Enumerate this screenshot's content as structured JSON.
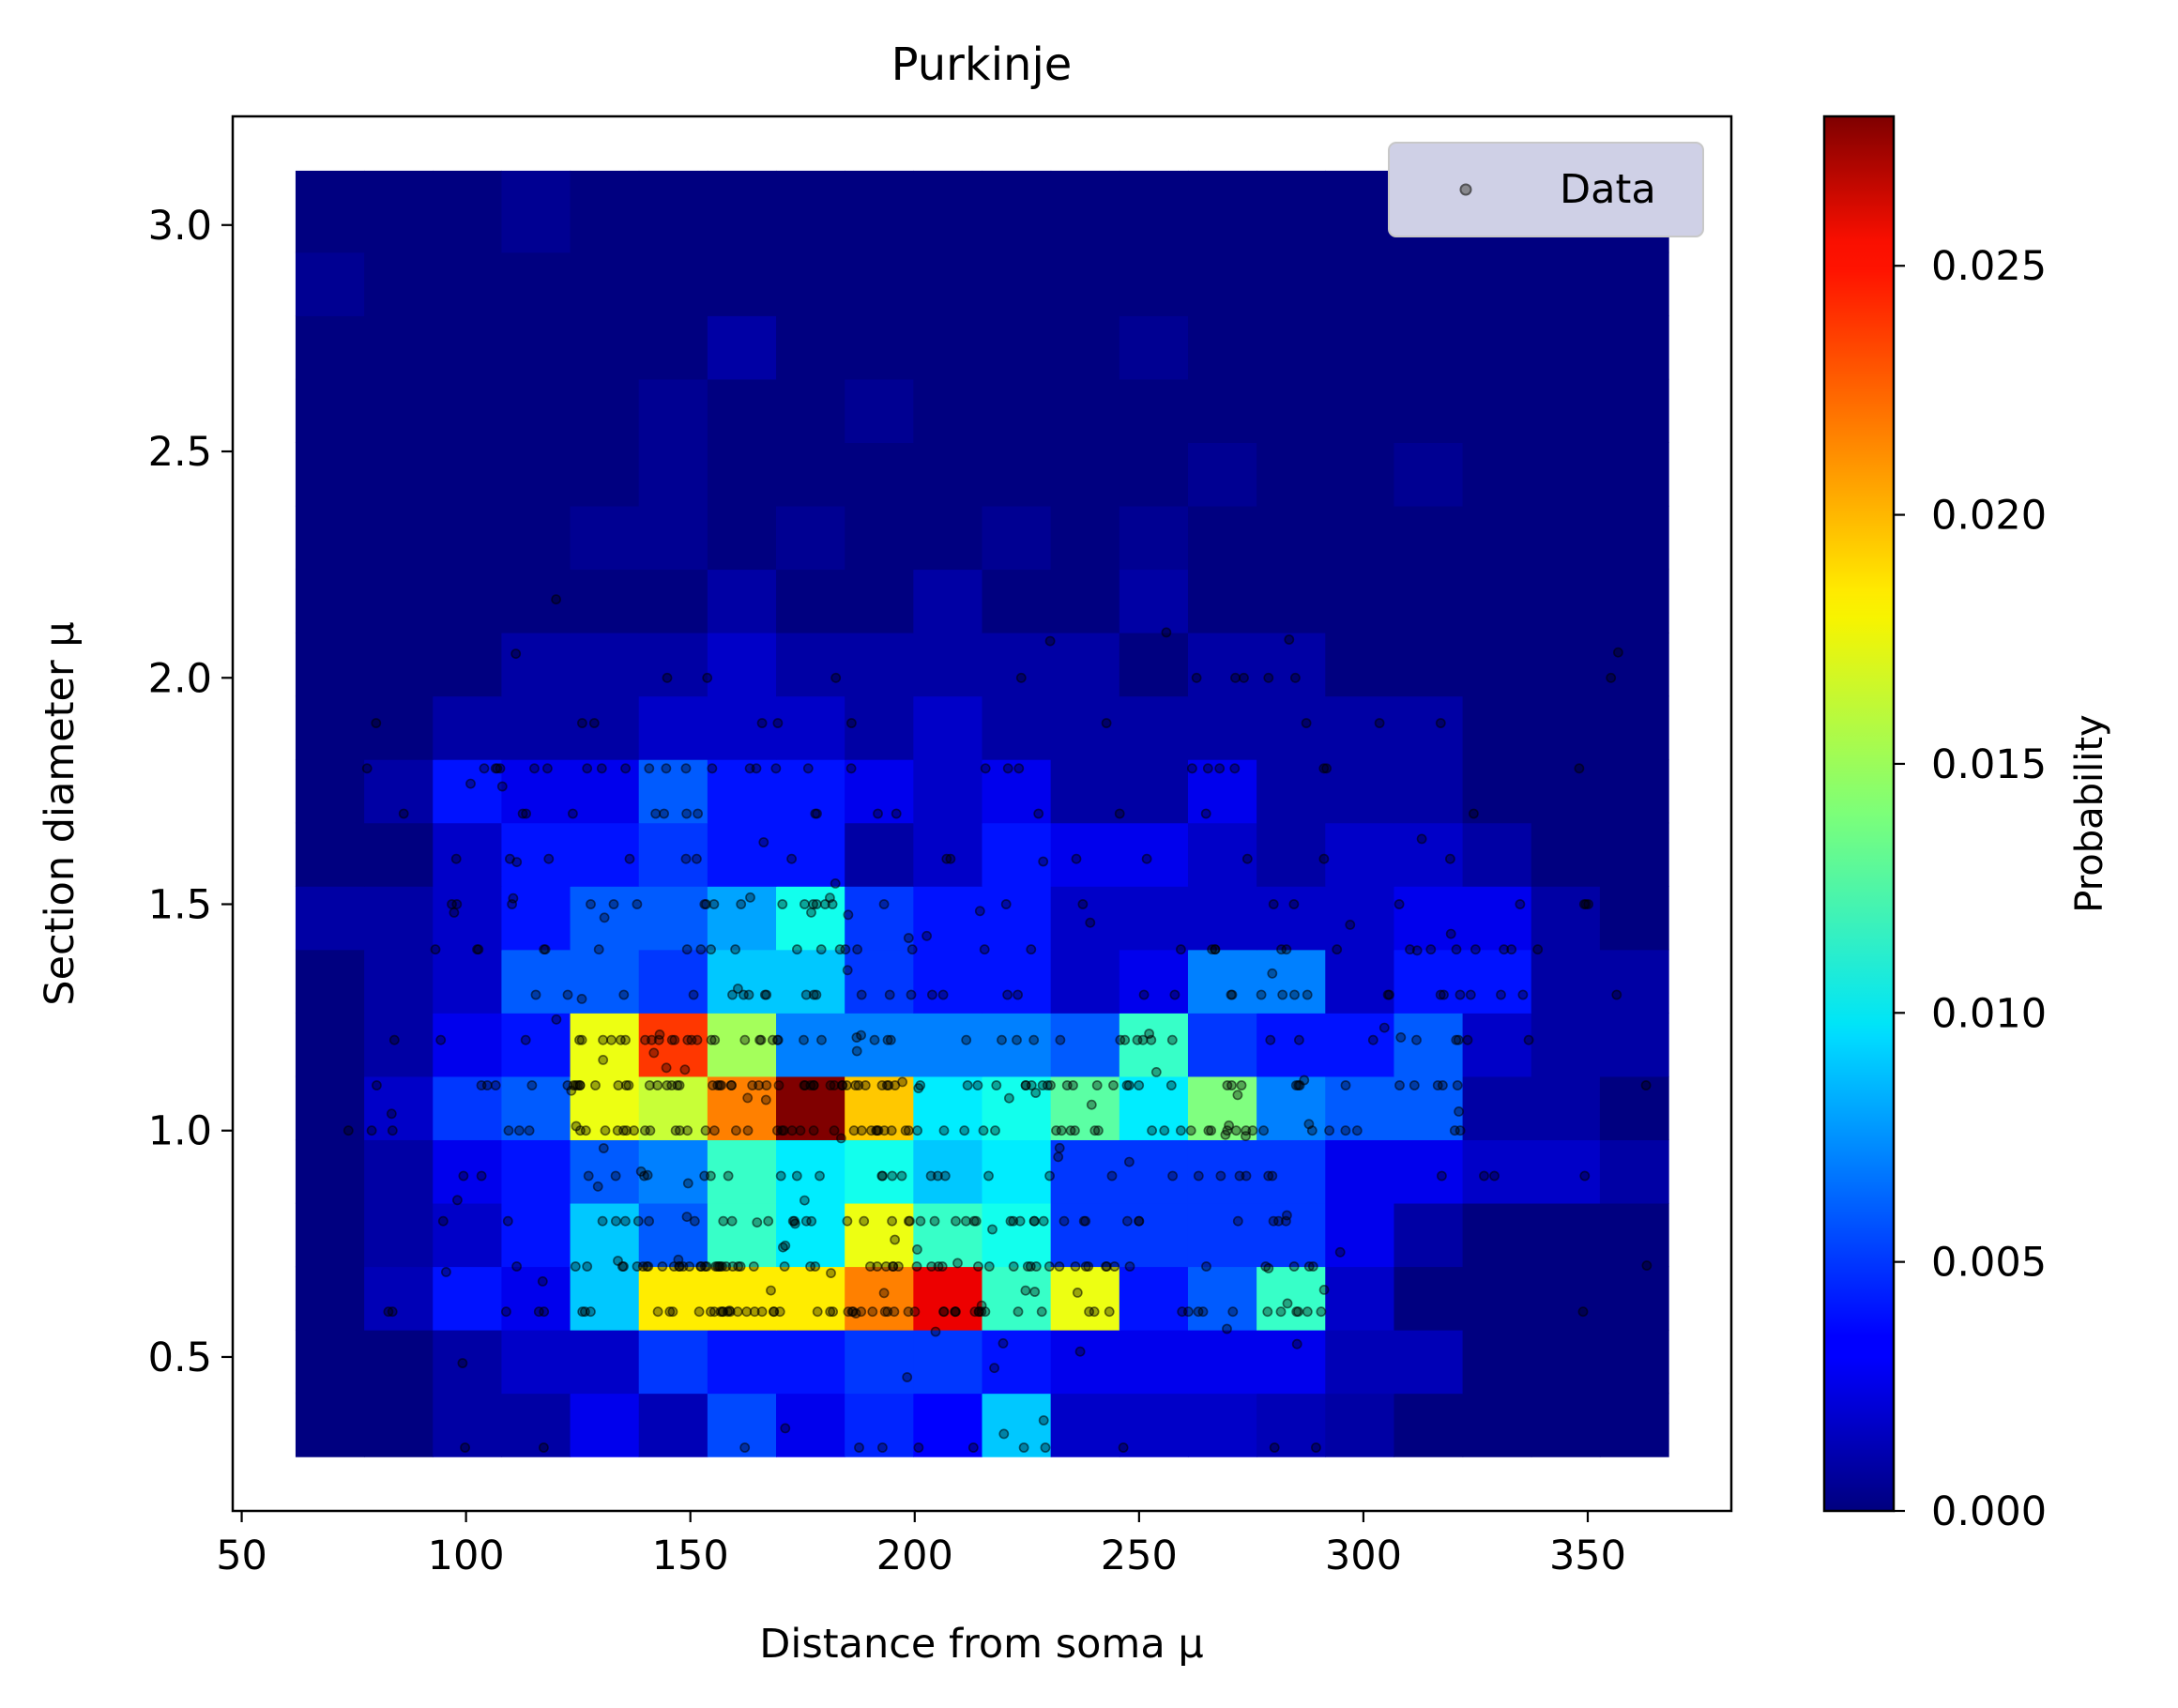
{
  "chart_data": {
    "type": "heatmap",
    "title": "Purkinje",
    "xlabel": "Distance from soma μ",
    "ylabel": "Section diameter μ",
    "xlim": [
      48,
      382
    ],
    "ylim": [
      0.16,
      3.24
    ],
    "xticks": [
      50,
      100,
      150,
      200,
      250,
      300,
      350
    ],
    "xtick_labels": [
      "50",
      "100",
      "150",
      "200",
      "250",
      "300",
      "350"
    ],
    "yticks": [
      0.5,
      1.0,
      1.5,
      2.0,
      2.5,
      3.0
    ],
    "ytick_labels": [
      "0.5",
      "1.0",
      "1.5",
      "2.0",
      "2.5",
      "3.0"
    ],
    "x_edges": [
      62,
      77.3,
      92.6,
      107.9,
      123.2,
      138.5,
      153.8,
      169.1,
      184.4,
      199.7,
      215,
      230.3,
      245.6,
      260.9,
      276.2,
      291.5,
      306.8,
      322.1,
      337.4,
      352.7,
      368
    ],
    "y_edges": [
      0.28,
      0.42,
      0.56,
      0.7,
      0.84,
      0.98,
      1.12,
      1.26,
      1.4,
      1.54,
      1.68,
      1.82,
      1.96,
      2.1,
      2.24,
      2.38,
      2.52,
      2.66,
      2.8,
      2.94,
      3.12
    ],
    "z_rows_bottom_to_top": [
      [
        0.0,
        0.0,
        0.001,
        0.001,
        0.003,
        0.0015,
        0.0055,
        0.003,
        0.0045,
        0.0035,
        0.009,
        0.002,
        0.002,
        0.002,
        0.0015,
        0.001,
        0.0,
        0.0,
        0.0,
        0.0
      ],
      [
        0.0,
        0.0,
        0.001,
        0.002,
        0.002,
        0.005,
        0.004,
        0.004,
        0.005,
        0.005,
        0.004,
        0.003,
        0.003,
        0.003,
        0.003,
        0.0015,
        0.0015,
        0.0,
        0.0,
        0.0
      ],
      [
        0.0,
        0.0015,
        0.004,
        0.003,
        0.009,
        0.018,
        0.018,
        0.018,
        0.021,
        0.025,
        0.012,
        0.017,
        0.004,
        0.006,
        0.012,
        0.002,
        0.0,
        0.0,
        0.0,
        0.0
      ],
      [
        0.0,
        0.001,
        0.002,
        0.004,
        0.009,
        0.006,
        0.012,
        0.01,
        0.017,
        0.012,
        0.011,
        0.005,
        0.005,
        0.005,
        0.005,
        0.003,
        0.001,
        0.0,
        0.0,
        0.0
      ],
      [
        0.0,
        0.001,
        0.003,
        0.004,
        0.006,
        0.007,
        0.012,
        0.01,
        0.011,
        0.009,
        0.01,
        0.005,
        0.005,
        0.005,
        0.005,
        0.003,
        0.003,
        0.002,
        0.002,
        0.001
      ],
      [
        0.0,
        0.002,
        0.005,
        0.006,
        0.017,
        0.016,
        0.021,
        0.028,
        0.019,
        0.01,
        0.011,
        0.013,
        0.01,
        0.014,
        0.007,
        0.006,
        0.006,
        0.001,
        0.001,
        0.0
      ],
      [
        0.0,
        0.001,
        0.003,
        0.004,
        0.017,
        0.023,
        0.015,
        0.007,
        0.007,
        0.007,
        0.007,
        0.006,
        0.012,
        0.005,
        0.004,
        0.004,
        0.006,
        0.002,
        0.001,
        0.001
      ],
      [
        0.0,
        0.001,
        0.002,
        0.006,
        0.006,
        0.005,
        0.009,
        0.009,
        0.005,
        0.004,
        0.004,
        0.002,
        0.003,
        0.007,
        0.007,
        0.002,
        0.004,
        0.004,
        0.001,
        0.001
      ],
      [
        0.001,
        0.001,
        0.002,
        0.004,
        0.006,
        0.006,
        0.008,
        0.011,
        0.005,
        0.004,
        0.004,
        0.002,
        0.002,
        0.002,
        0.002,
        0.002,
        0.003,
        0.003,
        0.001,
        0.0
      ],
      [
        0.0,
        0.0,
        0.002,
        0.004,
        0.004,
        0.005,
        0.004,
        0.004,
        0.001,
        0.002,
        0.004,
        0.003,
        0.003,
        0.002,
        0.001,
        0.002,
        0.002,
        0.001,
        0.0,
        0.0
      ],
      [
        0.0,
        0.001,
        0.004,
        0.003,
        0.003,
        0.006,
        0.004,
        0.004,
        0.003,
        0.002,
        0.003,
        0.001,
        0.001,
        0.003,
        0.001,
        0.001,
        0.001,
        0.0,
        0.0,
        0.0
      ],
      [
        0.0,
        0.0,
        0.001,
        0.001,
        0.001,
        0.002,
        0.002,
        0.002,
        0.001,
        0.002,
        0.001,
        0.001,
        0.001,
        0.001,
        0.001,
        0.001,
        0.001,
        0.0,
        0.0,
        0.0
      ],
      [
        0.0,
        0.0,
        0.0,
        0.001,
        0.001,
        0.001,
        0.002,
        0.001,
        0.001,
        0.001,
        0.001,
        0.001,
        0.0,
        0.001,
        0.001,
        0.0,
        0.0,
        0.0,
        0.0,
        0.0
      ],
      [
        0.0,
        0.0,
        0.0,
        0.0,
        0.0,
        0.0,
        0.001,
        0.0,
        0.0,
        0.001,
        0.0,
        0.0,
        0.001,
        0.0,
        0.0,
        0.0,
        0.0,
        0.0,
        0.0,
        0.0
      ],
      [
        0.0,
        0.0,
        0.0,
        0.0,
        0.0005,
        0.0005,
        0.0,
        0.0005,
        0.0,
        0.0,
        0.0005,
        0.0,
        0.0005,
        0.0,
        0.0,
        0.0,
        0.0,
        0.0,
        0.0,
        0.0
      ],
      [
        0.0,
        0.0,
        0.0,
        0.0,
        0.0,
        0.0005,
        0.0,
        0.0,
        0.0,
        0.0,
        0.0,
        0.0,
        0.0,
        0.0005,
        0.0,
        0.0,
        0.0005,
        0.0,
        0.0,
        0.0
      ],
      [
        0.0,
        0.0,
        0.0,
        0.0,
        0.0,
        0.0005,
        0.0,
        0.0,
        0.0005,
        0.0,
        0.0,
        0.0,
        0.0,
        0.0,
        0.0,
        0.0,
        0.0,
        0.0,
        0.0,
        0.0
      ],
      [
        0.0,
        0.0,
        0.0,
        0.0,
        0.0,
        0.0,
        0.001,
        0.0,
        0.0,
        0.0,
        0.0,
        0.0,
        0.0005,
        0.0,
        0.0,
        0.0,
        0.0,
        0.0,
        0.0,
        0.0
      ],
      [
        0.0005,
        0.0,
        0.0,
        0.0,
        0.0,
        0.0,
        0.0,
        0.0,
        0.0,
        0.0,
        0.0,
        0.0,
        0.0,
        0.0,
        0.0,
        0.0,
        0.0,
        0.0,
        0.0,
        0.0
      ],
      [
        0.0,
        0.0,
        0.0,
        0.0005,
        0.0,
        0.0,
        0.0,
        0.0,
        0.0,
        0.0,
        0.0,
        0.0,
        0.0,
        0.0,
        0.0,
        0.0,
        0.0,
        0.0,
        0.0,
        0.0
      ]
    ],
    "scatter_y_levels": [
      0.3,
      0.6,
      0.7,
      0.8,
      0.9,
      1.0,
      1.1,
      1.2,
      1.3,
      1.4,
      1.5,
      1.6,
      1.7,
      1.8,
      1.9,
      2.0
    ],
    "colorbar": {
      "label": "Probability",
      "range": [
        0.0,
        0.028
      ],
      "ticks": [
        0.0,
        0.005,
        0.01,
        0.015,
        0.02,
        0.025
      ],
      "tick_labels": [
        "0.000",
        "0.005",
        "0.010",
        "0.015",
        "0.020",
        "0.025"
      ],
      "colormap": "jet"
    },
    "legend": {
      "entries": [
        "Data"
      ],
      "placement": "top-right"
    },
    "colors": {
      "marker": "#000000",
      "legend_bg": "#cfd0e6",
      "axis": "#000000"
    },
    "grid": false
  }
}
